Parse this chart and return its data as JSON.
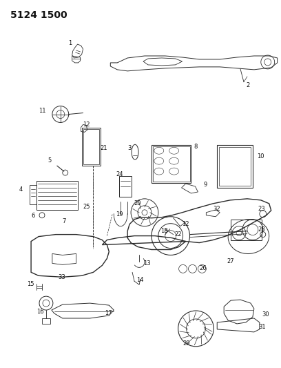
{
  "title": "5124 1500",
  "bg_color": "#ffffff",
  "line_color": "#2a2a2a",
  "text_color": "#111111",
  "fig_w": 4.08,
  "fig_h": 5.33,
  "dpi": 100
}
